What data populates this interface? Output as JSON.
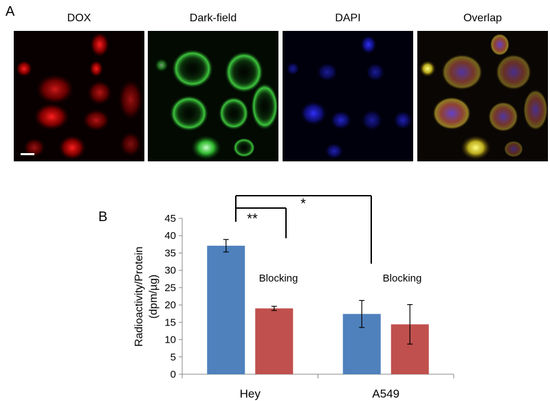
{
  "panel_a": {
    "label": "A",
    "images": [
      {
        "title": "DOX",
        "channel": "red"
      },
      {
        "title": "Dark-field",
        "channel": "green"
      },
      {
        "title": "DAPI",
        "channel": "blue"
      },
      {
        "title": "Overlap",
        "channel": "merge"
      }
    ]
  },
  "panel_b": {
    "label": "B"
  },
  "chart_data": {
    "type": "bar",
    "categories": [
      "Hey",
      "A549"
    ],
    "series": [
      {
        "values": [
          37.1,
          17.4
        ],
        "errors": [
          1.8,
          3.9
        ],
        "color": "#4f81bd"
      },
      {
        "values": [
          19.0,
          14.4
        ],
        "errors": [
          0.6,
          5.7
        ],
        "color": "#c0504d"
      }
    ],
    "ylabel_line1": "Radioactivity/Protein",
    "ylabel_line2": "(dpm/µg)",
    "ylim": [
      0,
      45
    ],
    "yticks": [
      0,
      5,
      10,
      15,
      20,
      25,
      30,
      35,
      40,
      45
    ],
    "annotations": [
      "Blocking",
      "Blocking"
    ],
    "significance": [
      "**",
      "*"
    ]
  }
}
